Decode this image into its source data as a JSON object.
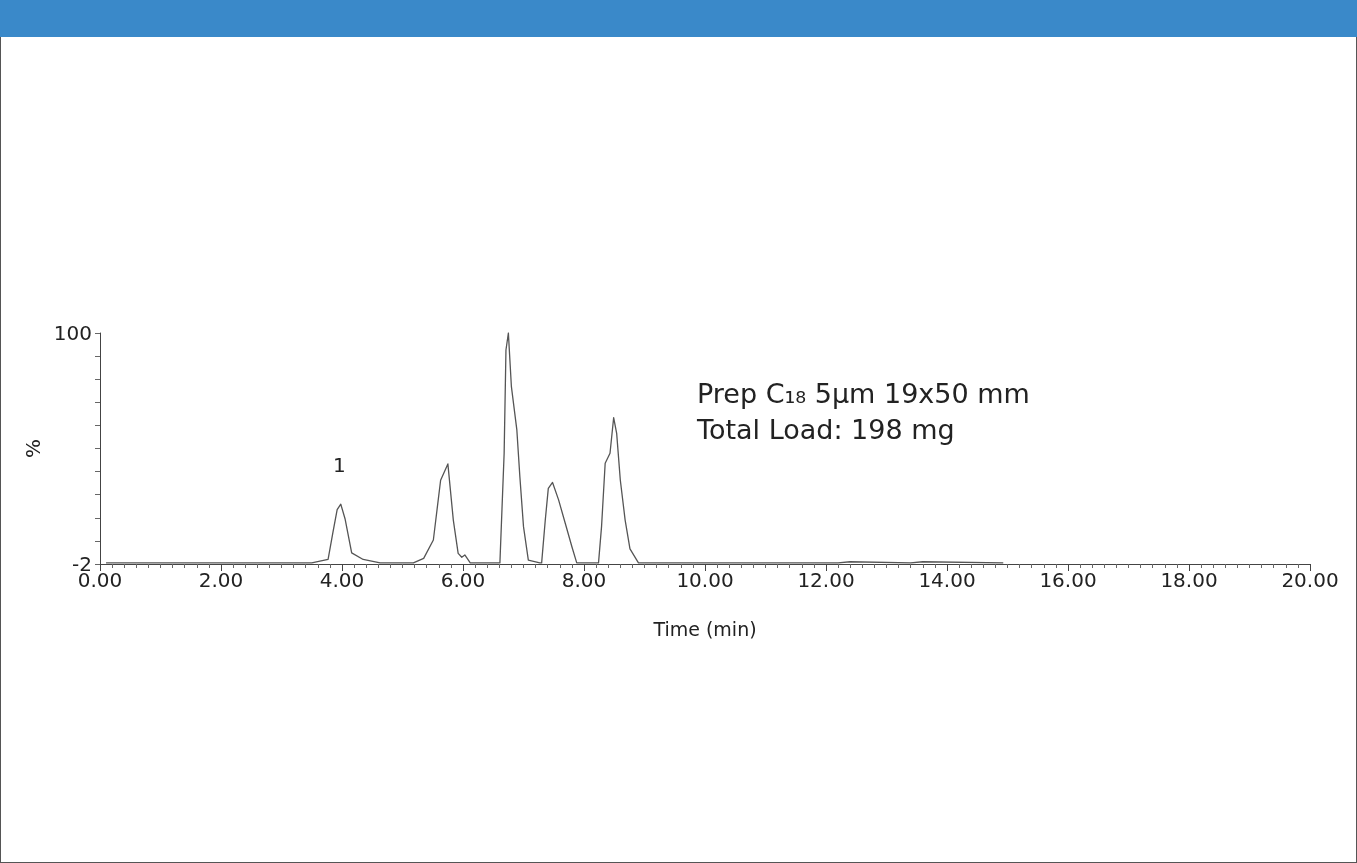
{
  "chart_data": {
    "type": "line",
    "xlabel": "Time (min)",
    "ylabel": "%",
    "x": [
      0.1,
      3.5,
      3.77,
      3.85,
      3.92,
      3.98,
      4.05,
      4.16,
      4.35,
      4.63,
      5.18,
      5.35,
      5.51,
      5.63,
      5.75,
      5.84,
      5.92,
      5.98,
      6.03,
      6.12,
      6.61,
      6.68,
      6.71,
      6.75,
      6.8,
      6.89,
      6.94,
      7.0,
      7.08,
      7.27,
      7.3,
      7.36,
      7.41,
      7.48,
      7.58,
      7.69,
      7.8,
      7.88,
      8.24,
      8.29,
      8.35,
      8.43,
      8.49,
      8.54,
      8.6,
      8.68,
      8.76,
      8.9,
      12.2,
      12.4,
      13.4,
      13.6,
      14.93
    ],
    "values": [
      -1.5,
      -1.5,
      0,
      12,
      22,
      24.4,
      18,
      2.9,
      0,
      -1.5,
      -1.5,
      0.5,
      8.6,
      35,
      42.2,
      17.4,
      2.7,
      1,
      2,
      -1.5,
      -1.5,
      46.9,
      92.5,
      100,
      76.3,
      57.2,
      36.5,
      14.5,
      -0.3,
      -1.5,
      -1.5,
      17.4,
      31.4,
      34,
      26.3,
      16,
      5.6,
      -1.5,
      -1.5,
      14.5,
      42.5,
      46.9,
      62.6,
      55.7,
      35.1,
      17.4,
      4.7,
      -1.5,
      -1.5,
      -1,
      -1.5,
      -1,
      -1.5
    ],
    "color": "#555555",
    "marker": "none",
    "line_style": "solid",
    "grid": false,
    "xlim": [
      0,
      20
    ],
    "xticks": [
      {
        "value": 0,
        "label": "0.00"
      },
      {
        "value": 2,
        "label": "2.00"
      },
      {
        "value": 4,
        "label": "4.00"
      },
      {
        "value": 6,
        "label": "6.00"
      },
      {
        "value": 8,
        "label": "8.00"
      },
      {
        "value": 10,
        "label": "10.00"
      },
      {
        "value": 12,
        "label": "12.00"
      },
      {
        "value": 14,
        "label": "14.00"
      },
      {
        "value": 16,
        "label": "16.00"
      },
      {
        "value": 18,
        "label": "18.00"
      },
      {
        "value": 20,
        "label": "20.00"
      }
    ],
    "ylim": [
      -2,
      100
    ],
    "yticks": [
      -2,
      {
        "value": 8.2,
        "label": null
      },
      {
        "value": 18.4,
        "label": null
      },
      {
        "value": 28.6,
        "label": null
      },
      {
        "value": 38.8,
        "label": null
      },
      {
        "value": 49,
        "label": null
      },
      {
        "value": 59.2,
        "label": null
      },
      {
        "value": 69.4,
        "label": null
      },
      {
        "value": 79.6,
        "label": null
      },
      {
        "value": 89.8,
        "label": null
      },
      100
    ],
    "annotations": [
      "1",
      "Prep C₁₈ 5μm 19x50 mm",
      "Total Load: 198 mg"
    ]
  }
}
